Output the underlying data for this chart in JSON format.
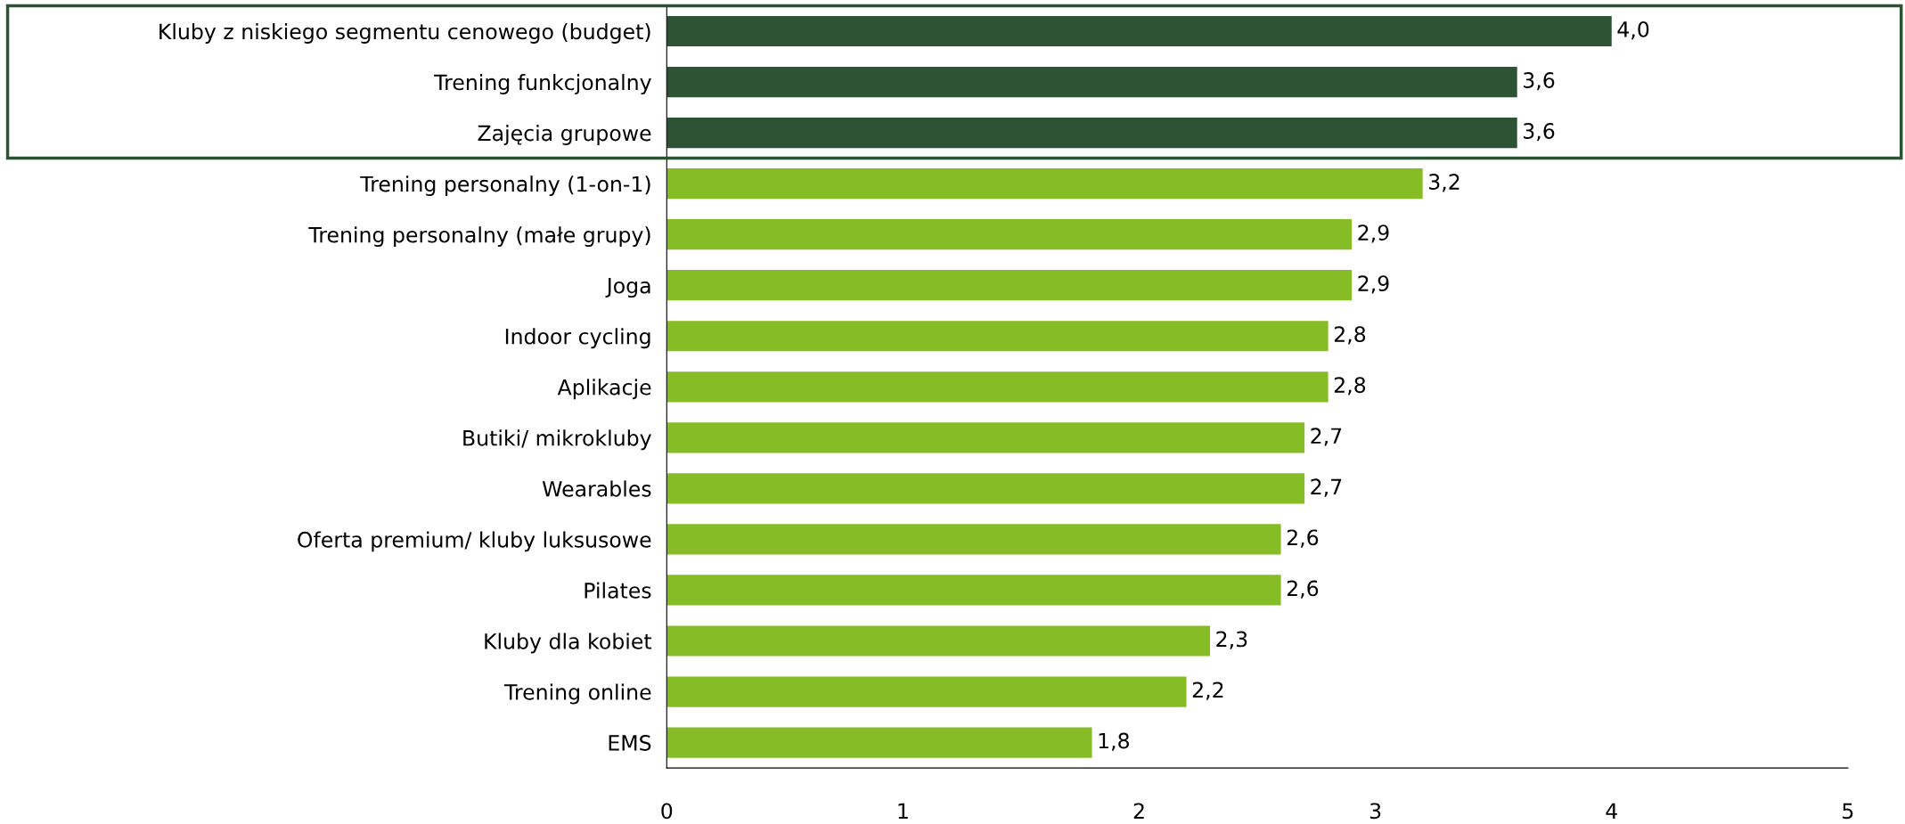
{
  "chart_data": {
    "type": "bar",
    "orientation": "horizontal",
    "categories": [
      "Kluby z niskiego segmentu cenowego (budget)",
      "Trening funkcjonalny",
      "Zajęcia grupowe",
      "Trening personalny (1-on-1)",
      "Trening personalny (małe grupy)",
      "Joga",
      "Indoor cycling",
      "Aplikacje",
      "Butiki/ mikrokluby",
      "Wearables",
      "Oferta premium/ kluby luksusowe",
      "Pilates",
      "Kluby dla kobiet",
      "Trening online",
      "EMS"
    ],
    "values": [
      4.0,
      3.6,
      3.6,
      3.2,
      2.9,
      2.9,
      2.8,
      2.8,
      2.7,
      2.7,
      2.6,
      2.6,
      2.3,
      2.2,
      1.8
    ],
    "colors": [
      "#2b5334",
      "#2b5334",
      "#2b5334",
      "#86bc25",
      "#86bc25",
      "#86bc25",
      "#86bc25",
      "#86bc25",
      "#86bc25",
      "#86bc25",
      "#86bc25",
      "#86bc25",
      "#86bc25",
      "#86bc25",
      "#86bc25"
    ],
    "value_labels": [
      "4,0",
      "3,6",
      "3,6",
      "3,2",
      "2,9",
      "2,9",
      "2,8",
      "2,8",
      "2,7",
      "2,7",
      "2,6",
      "2,6",
      "2,3",
      "2,2",
      "1,8"
    ],
    "xlim": [
      0,
      5
    ],
    "xticks": [
      0,
      1,
      2,
      3,
      4,
      5
    ],
    "grid": false,
    "legend": false
  }
}
